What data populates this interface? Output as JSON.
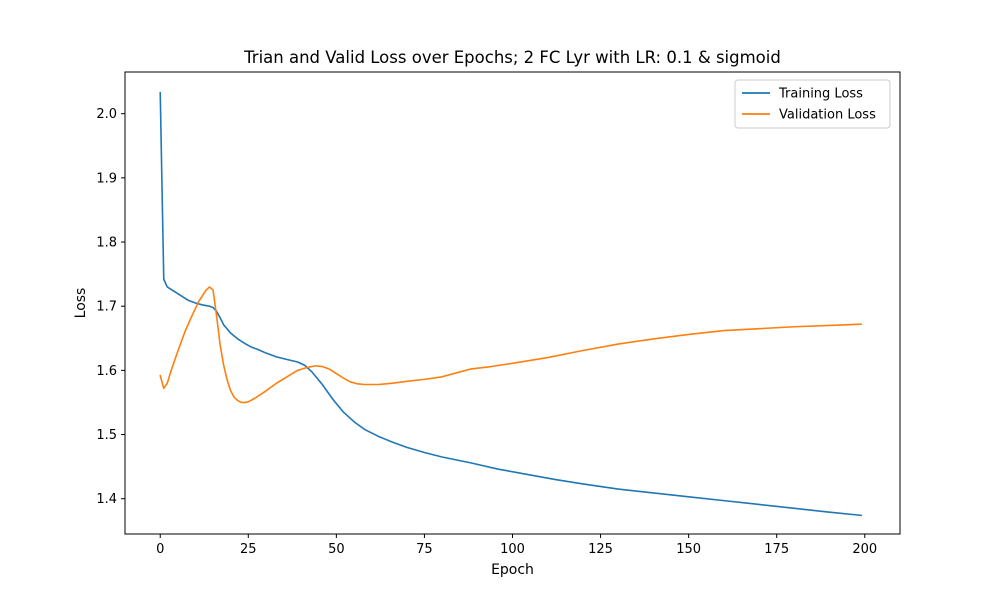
{
  "chart_data": {
    "type": "line",
    "title": "Trian and Valid Loss over Epochs; 2 FC Lyr with LR: 0.1 & sigmoid",
    "xlabel": "Epoch",
    "ylabel": "Loss",
    "xlim": [
      -10,
      210
    ],
    "ylim": [
      1.345,
      2.065
    ],
    "xticks": [
      0,
      25,
      50,
      75,
      100,
      125,
      150,
      175,
      200
    ],
    "yticks": [
      1.4,
      1.5,
      1.6,
      1.7,
      1.8,
      1.9,
      2.0
    ],
    "xtick_labels": [
      "0",
      "25",
      "50",
      "75",
      "100",
      "125",
      "150",
      "175",
      "200"
    ],
    "ytick_labels": [
      "1.4",
      "1.5",
      "1.6",
      "1.7",
      "1.8",
      "1.9",
      "2.0"
    ],
    "grid": false,
    "legend_position": "top-right",
    "series": [
      {
        "name": "Training Loss",
        "color": "#1f77b4",
        "x": [
          0,
          1,
          2,
          4,
          6,
          8,
          10,
          12,
          14,
          15,
          16,
          17,
          18,
          20,
          22,
          24,
          26,
          28,
          30,
          33,
          36,
          39,
          41,
          43,
          46,
          49,
          52,
          55,
          58,
          62,
          66,
          70,
          75,
          80,
          88,
          96,
          104,
          112,
          120,
          130,
          140,
          150,
          160,
          170,
          180,
          190,
          199
        ],
        "y": [
          2.033,
          1.742,
          1.73,
          1.723,
          1.716,
          1.709,
          1.705,
          1.702,
          1.7,
          1.698,
          1.692,
          1.682,
          1.671,
          1.658,
          1.649,
          1.642,
          1.636,
          1.632,
          1.627,
          1.621,
          1.617,
          1.613,
          1.608,
          1.598,
          1.578,
          1.555,
          1.535,
          1.52,
          1.508,
          1.497,
          1.488,
          1.48,
          1.472,
          1.465,
          1.456,
          1.446,
          1.438,
          1.43,
          1.423,
          1.415,
          1.409,
          1.403,
          1.397,
          1.391,
          1.385,
          1.379,
          1.374
        ]
      },
      {
        "name": "Validation Loss",
        "color": "#ff7f0e",
        "x": [
          0,
          1,
          2,
          3,
          5,
          7,
          9,
          11,
          13,
          14,
          15,
          16,
          17,
          18,
          19,
          20,
          21,
          22,
          23,
          24,
          25,
          27,
          30,
          33,
          36,
          39,
          42,
          44,
          46,
          48,
          50,
          52,
          54,
          56,
          58,
          62,
          66,
          70,
          75,
          80,
          84,
          88,
          94,
          100,
          110,
          120,
          130,
          140,
          150,
          160,
          170,
          180,
          190,
          199
        ],
        "y": [
          1.592,
          1.572,
          1.58,
          1.598,
          1.63,
          1.66,
          1.685,
          1.708,
          1.725,
          1.73,
          1.725,
          1.685,
          1.64,
          1.608,
          1.585,
          1.568,
          1.558,
          1.553,
          1.55,
          1.55,
          1.551,
          1.557,
          1.568,
          1.58,
          1.59,
          1.6,
          1.605,
          1.607,
          1.606,
          1.602,
          1.595,
          1.588,
          1.582,
          1.579,
          1.578,
          1.578,
          1.58,
          1.583,
          1.586,
          1.59,
          1.596,
          1.602,
          1.606,
          1.611,
          1.62,
          1.631,
          1.641,
          1.649,
          1.656,
          1.662,
          1.665,
          1.668,
          1.67,
          1.672
        ]
      }
    ]
  }
}
